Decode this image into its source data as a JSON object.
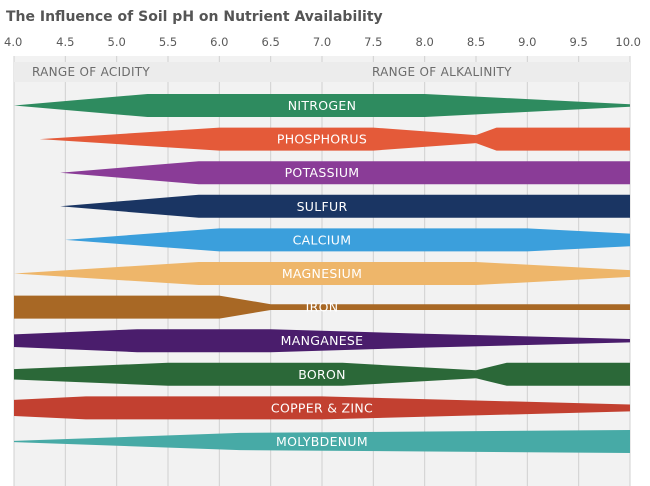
{
  "chart_data": {
    "type": "area",
    "title": "The Influence of Soil pH on Nutrient Availability",
    "x_ticks": [
      "4.0",
      "4.5",
      "5.0",
      "5.5",
      "6.0",
      "6.5",
      "7.0",
      "7.5",
      "8.0",
      "8.5",
      "9.0",
      "9.5",
      "10.0"
    ],
    "xlim": [
      4.0,
      10.0
    ],
    "grid": true,
    "range_labels": {
      "acidity": "RANGE OF ACIDITY",
      "alkalinity": "RANGE OF ALKALINITY"
    },
    "series": [
      {
        "name": "NITROGEN",
        "color": "#2e8b5f",
        "x": [
          4.0,
          5.3,
          8.0,
          10.0
        ],
        "availability": [
          0.0,
          1.0,
          1.0,
          0.1
        ]
      },
      {
        "name": "PHOSPHORUS",
        "color": "#e45a39",
        "x": [
          4.25,
          6.0,
          7.5,
          8.5,
          8.7,
          10.0
        ],
        "availability": [
          0.0,
          1.0,
          1.0,
          0.35,
          1.0,
          1.0
        ]
      },
      {
        "name": "POTASSIUM",
        "color": "#8a3c97",
        "x": [
          4.45,
          5.8,
          10.0
        ],
        "availability": [
          0.0,
          1.0,
          1.0
        ]
      },
      {
        "name": "SULFUR",
        "color": "#1a3563",
        "x": [
          4.45,
          5.8,
          10.0
        ],
        "availability": [
          0.0,
          1.0,
          1.0
        ]
      },
      {
        "name": "CALCIUM",
        "color": "#3b9fdc",
        "x": [
          4.5,
          6.0,
          8.0,
          9.0,
          10.0
        ],
        "availability": [
          0.0,
          1.0,
          1.0,
          1.0,
          0.55
        ]
      },
      {
        "name": "MAGNESIUM",
        "color": "#eeb66a",
        "x": [
          4.0,
          5.8,
          8.5,
          10.0
        ],
        "availability": [
          0.0,
          1.0,
          1.0,
          0.3
        ]
      },
      {
        "name": "IRON",
        "color": "#a86825",
        "x": [
          4.0,
          6.0,
          6.5,
          10.0
        ],
        "availability": [
          1.0,
          1.0,
          0.25,
          0.25
        ]
      },
      {
        "name": "MANGANESE",
        "color": "#4a1d6c",
        "x": [
          4.0,
          5.2,
          6.5,
          8.0,
          10.0
        ],
        "availability": [
          0.55,
          1.0,
          1.0,
          0.6,
          0.15
        ]
      },
      {
        "name": "BORON",
        "color": "#2b6838",
        "x": [
          4.0,
          5.5,
          7.2,
          8.5,
          8.8,
          10.0
        ],
        "availability": [
          0.45,
          1.0,
          1.0,
          0.35,
          1.0,
          1.0
        ]
      },
      {
        "name": "COPPER & ZINC",
        "color": "#c24030",
        "x": [
          4.0,
          4.7,
          7.0,
          10.0
        ],
        "availability": [
          0.7,
          1.0,
          1.0,
          0.3
        ]
      },
      {
        "name": "MOLYBDENUM",
        "color": "#47aaa6",
        "x": [
          4.0,
          6.2,
          10.0
        ],
        "availability": [
          0.05,
          0.75,
          1.0
        ]
      }
    ]
  }
}
